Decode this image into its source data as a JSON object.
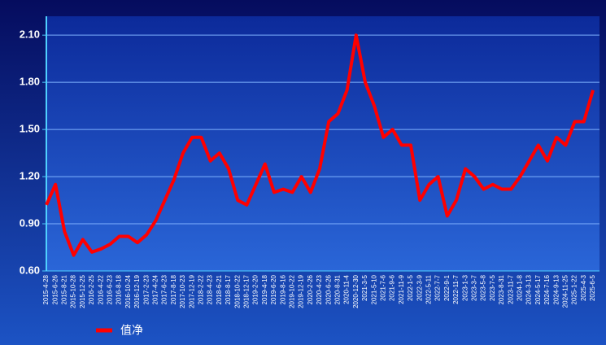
{
  "chart_data": {
    "type": "line",
    "categories": [
      "2015-4-28",
      "2015-6-26",
      "2015-8-21",
      "2015-10-28",
      "2015-12-25",
      "2016-2-25",
      "2016-4-22",
      "2016-6-23",
      "2016-8-18",
      "2016-10-24",
      "2016-12-19",
      "2017-2-23",
      "2017-4-24",
      "2017-6-23",
      "2017-8-18",
      "2017-10-23",
      "2017-12-19",
      "2018-2-22",
      "2018-4-23",
      "2018-6-21",
      "2018-8-17",
      "2018-10-22",
      "2018-12-17",
      "2019-2-20",
      "2019-4-18",
      "2019-6-20",
      "2019-8-16",
      "2019-10-22",
      "2019-12-19",
      "2020-2-26",
      "2020-4-23",
      "2020-6-26",
      "2020-8-31",
      "2020-11-4",
      "2020-12-30",
      "2021-3-5",
      "2021-5-10",
      "2021-7-6",
      "2021-9-6",
      "2021-11-9",
      "2022-1-5",
      "2022-3-9",
      "2022-5-11",
      "2022-7-7",
      "2022-9-1",
      "2022-11-7",
      "2023-1-3",
      "2023-3-7",
      "2023-5-8",
      "2023-7-5",
      "2023-8-31",
      "2023-11-7",
      "2024-1-8",
      "2024-3-13",
      "2024-5-17",
      "2024-7-16",
      "2024-9-13",
      "2024-11-25",
      "2025-1-22",
      "2025-4-3",
      "2025-6-5"
    ],
    "series": [
      {
        "name": "值净",
        "color": "#ff0000",
        "values": [
          1.02,
          1.15,
          0.85,
          0.7,
          0.8,
          0.72,
          0.74,
          0.77,
          0.82,
          0.82,
          0.78,
          0.83,
          0.92,
          1.05,
          1.18,
          1.35,
          1.45,
          1.45,
          1.3,
          1.35,
          1.25,
          1.05,
          1.02,
          1.15,
          1.28,
          1.1,
          1.12,
          1.1,
          1.2,
          1.1,
          1.25,
          1.55,
          1.6,
          1.75,
          2.1,
          1.8,
          1.65,
          1.45,
          1.5,
          1.4,
          1.4,
          1.05,
          1.15,
          1.2,
          0.95,
          1.05,
          1.25,
          1.2,
          1.12,
          1.15,
          1.12,
          1.12,
          1.2,
          1.3,
          1.4,
          1.3,
          1.45,
          1.4,
          1.55,
          1.55,
          1.75
        ]
      }
    ],
    "ylim": [
      0.6,
      2.22
    ],
    "yticks": [
      {
        "value": 0.6,
        "label": "0.60"
      },
      {
        "value": 0.9,
        "label": "0.90"
      },
      {
        "value": 1.2,
        "label": "1.20"
      },
      {
        "value": 1.5,
        "label": "1.50"
      },
      {
        "value": 1.8,
        "label": "1.80"
      },
      {
        "value": 2.1,
        "label": "2.10"
      }
    ],
    "grid": true
  }
}
